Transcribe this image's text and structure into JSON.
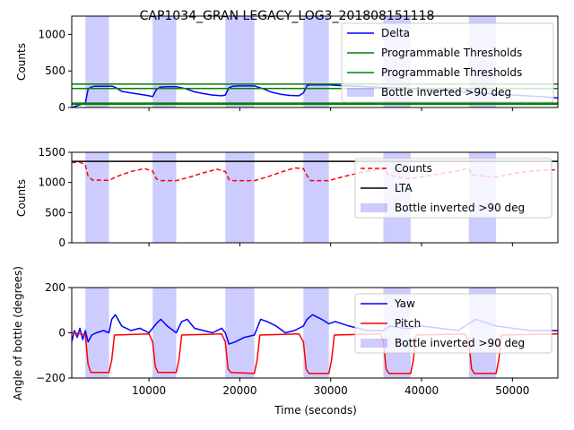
{
  "figure_title": "CAP1034_GRAN LEGACY_LOG3_201808151118",
  "xlabel": "Time (seconds)",
  "colors": {
    "shade": "#0000ff",
    "delta": "#0000ff",
    "threshold": "#008000",
    "counts": "#ff0000",
    "lta": "#000000",
    "yaw": "#0000ff",
    "pitch": "#ff0000"
  },
  "inverted_intervals": [
    [
      3000,
      5600
    ],
    [
      10400,
      13000
    ],
    [
      18400,
      21600
    ],
    [
      27000,
      29800
    ],
    [
      35800,
      38800
    ],
    [
      45200,
      48200
    ]
  ],
  "chart_data": [
    {
      "type": "line",
      "ylabel": "Counts",
      "xlim": [
        1500,
        55000
      ],
      "ylim": [
        0,
        1250
      ],
      "xticks": [
        10000,
        20000,
        30000,
        40000,
        50000
      ],
      "xtick_labels": [],
      "yticks": [
        0,
        500,
        1000
      ],
      "ytick_labels": [
        "0",
        "500",
        "1000"
      ],
      "legend_position": "top-right",
      "legend": [
        "Delta",
        "Programmable Thresholds",
        "Programmable Thresholds",
        "Bottle inverted >90 deg"
      ],
      "series": [
        {
          "name": "Delta",
          "kind": "line",
          "x": [
            1500,
            2500,
            3000,
            3300,
            3600,
            4000,
            6000,
            6400,
            7000,
            8000,
            9000,
            10000,
            10400,
            10800,
            11200,
            12000,
            13000,
            14000,
            15000,
            16000,
            17000,
            18000,
            18400,
            18800,
            19200,
            20000,
            21600,
            22500,
            23500,
            24500,
            25500,
            26500,
            27000,
            27400,
            27800,
            29800,
            31000,
            33000,
            35000,
            38000,
            42000,
            46000,
            50000,
            53000,
            55000
          ],
          "y": [
            0,
            40,
            60,
            250,
            280,
            290,
            290,
            270,
            220,
            200,
            180,
            160,
            150,
            240,
            280,
            285,
            285,
            260,
            215,
            190,
            170,
            160,
            170,
            270,
            290,
            295,
            295,
            260,
            210,
            180,
            165,
            160,
            200,
            300,
            310,
            310,
            300,
            290,
            280,
            260,
            230,
            200,
            170,
            150,
            130
          ]
        },
        {
          "name": "Programmable Thresholds",
          "kind": "hline",
          "y": 320
        },
        {
          "name": "Programmable Thresholds",
          "kind": "hline",
          "y": 260
        },
        {
          "name": "",
          "kind": "hline",
          "y": 60
        },
        {
          "name": "",
          "kind": "hline",
          "y": 45
        }
      ]
    },
    {
      "type": "line",
      "ylabel": "Counts",
      "xlim": [
        1500,
        55000
      ],
      "ylim": [
        0,
        1500
      ],
      "xticks": [
        10000,
        20000,
        30000,
        40000,
        50000
      ],
      "xtick_labels": [],
      "yticks": [
        0,
        500,
        1000,
        1500
      ],
      "ytick_labels": [
        "0",
        "500",
        "1000",
        "1500"
      ],
      "legend_position": "center-right",
      "legend": [
        "Counts",
        "LTA",
        "Bottle inverted >90 deg"
      ],
      "series": [
        {
          "name": "Counts",
          "kind": "dashed",
          "x": [
            1500,
            2500,
            3000,
            3300,
            3800,
            5600,
            6500,
            8000,
            9500,
            10400,
            10800,
            11200,
            13000,
            14500,
            16000,
            17500,
            18400,
            18800,
            19200,
            21600,
            23000,
            24500,
            26000,
            27000,
            27400,
            27800,
            29800,
            31500,
            33500,
            35800,
            36400,
            38800,
            41000,
            43500,
            45200,
            45600,
            48200,
            51000,
            53000,
            55000
          ],
          "y": [
            1330,
            1330,
            1290,
            1100,
            1040,
            1035,
            1100,
            1180,
            1230,
            1190,
            1060,
            1030,
            1030,
            1090,
            1160,
            1220,
            1180,
            1050,
            1030,
            1030,
            1090,
            1170,
            1240,
            1230,
            1110,
            1030,
            1030,
            1100,
            1170,
            1230,
            1120,
            1060,
            1120,
            1180,
            1230,
            1120,
            1090,
            1170,
            1200,
            1210
          ]
        },
        {
          "name": "LTA",
          "kind": "hline",
          "y": 1350
        }
      ]
    },
    {
      "type": "line",
      "ylabel": "Angle of bottle (degrees)",
      "xlim": [
        1500,
        55000
      ],
      "ylim": [
        -200,
        200
      ],
      "xticks": [
        10000,
        20000,
        30000,
        40000,
        50000
      ],
      "xtick_labels": [
        "10000",
        "20000",
        "30000",
        "40000",
        "50000"
      ],
      "yticks": [
        -200,
        0,
        200
      ],
      "ytick_labels": [
        "−200",
        "0",
        "200"
      ],
      "legend_position": "center-right",
      "legend": [
        "Yaw",
        "Pitch",
        "Bottle inverted >90 deg"
      ],
      "series": [
        {
          "name": "Yaw",
          "kind": "line",
          "x": [
            1500,
            1800,
            2100,
            2400,
            2700,
            3000,
            3300,
            3700,
            4200,
            5000,
            5600,
            5900,
            6300,
            7000,
            8000,
            9000,
            10000,
            10400,
            10800,
            11300,
            12000,
            13000,
            13600,
            14200,
            15000,
            16000,
            17000,
            18000,
            18400,
            18800,
            19500,
            20500,
            21600,
            22300,
            23000,
            24000,
            25000,
            26000,
            27000,
            27400,
            28000,
            29000,
            29800,
            30500,
            32000,
            34000,
            35800,
            36500,
            38000,
            38800,
            40000,
            42000,
            44000,
            45200,
            46000,
            48200,
            50000,
            52000,
            54000,
            55000
          ],
          "y": [
            -40,
            10,
            -20,
            20,
            -30,
            10,
            -40,
            -10,
            0,
            10,
            0,
            60,
            80,
            30,
            10,
            20,
            0,
            20,
            40,
            60,
            30,
            0,
            50,
            60,
            20,
            10,
            0,
            20,
            0,
            -50,
            -40,
            -20,
            -10,
            60,
            50,
            30,
            0,
            10,
            30,
            60,
            80,
            60,
            40,
            50,
            30,
            10,
            10,
            30,
            20,
            20,
            30,
            20,
            10,
            40,
            60,
            30,
            20,
            10,
            10,
            10
          ]
        },
        {
          "name": "Pitch",
          "kind": "line",
          "x": [
            1500,
            2500,
            3000,
            3300,
            3600,
            5600,
            5900,
            6200,
            10000,
            10400,
            10700,
            11000,
            13000,
            13300,
            13600,
            18000,
            18400,
            18700,
            19000,
            21600,
            21900,
            22200,
            26500,
            27000,
            27300,
            27600,
            29800,
            30100,
            30400,
            35500,
            35800,
            36100,
            36400,
            38800,
            39100,
            39400,
            44800,
            45200,
            45500,
            45800,
            48200,
            48500,
            48800,
            55000
          ],
          "y": [
            0,
            -5,
            -10,
            -140,
            -175,
            -175,
            -120,
            -10,
            -5,
            -40,
            -150,
            -175,
            -175,
            -120,
            -10,
            -5,
            -40,
            -160,
            -175,
            -180,
            -120,
            -10,
            -5,
            -40,
            -160,
            -180,
            -180,
            -120,
            -10,
            -5,
            -40,
            -160,
            -180,
            -180,
            -120,
            -10,
            -5,
            -40,
            -160,
            -180,
            -180,
            -120,
            -10,
            -5
          ]
        }
      ]
    }
  ]
}
